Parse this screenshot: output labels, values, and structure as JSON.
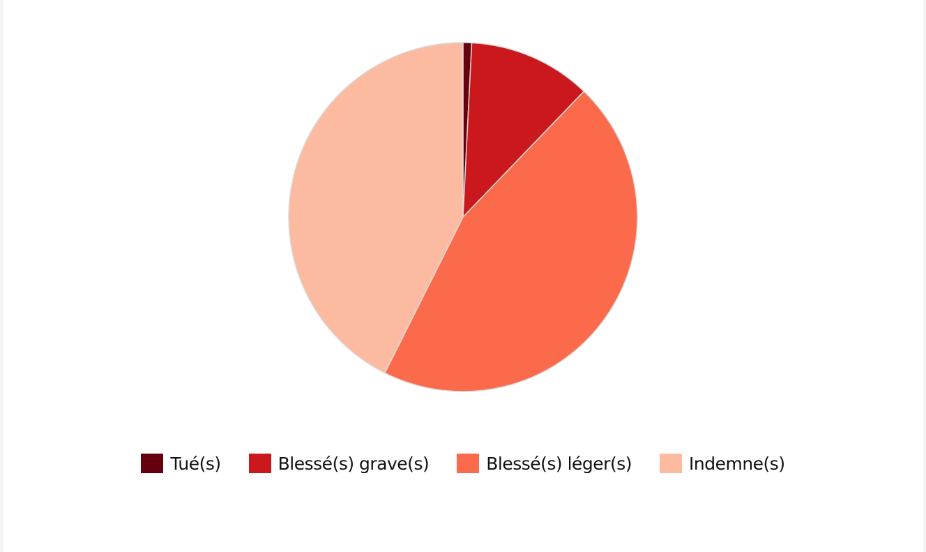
{
  "chart_data": {
    "type": "pie",
    "title": "",
    "start_angle_deg": 0,
    "direction": "clockwise",
    "slice_border_color": "#d9d9d9",
    "categories": [
      "Tué(s)",
      "Blessé(s) grave(s)",
      "Blessé(s) léger(s)",
      "Indemne(s)"
    ],
    "values": [
      0.8,
      11.4,
      45.2,
      42.6
    ],
    "colors": [
      "#67000d",
      "#cb181d",
      "#fb6a4a",
      "#fcbba1"
    ],
    "legend_position": "bottom"
  }
}
